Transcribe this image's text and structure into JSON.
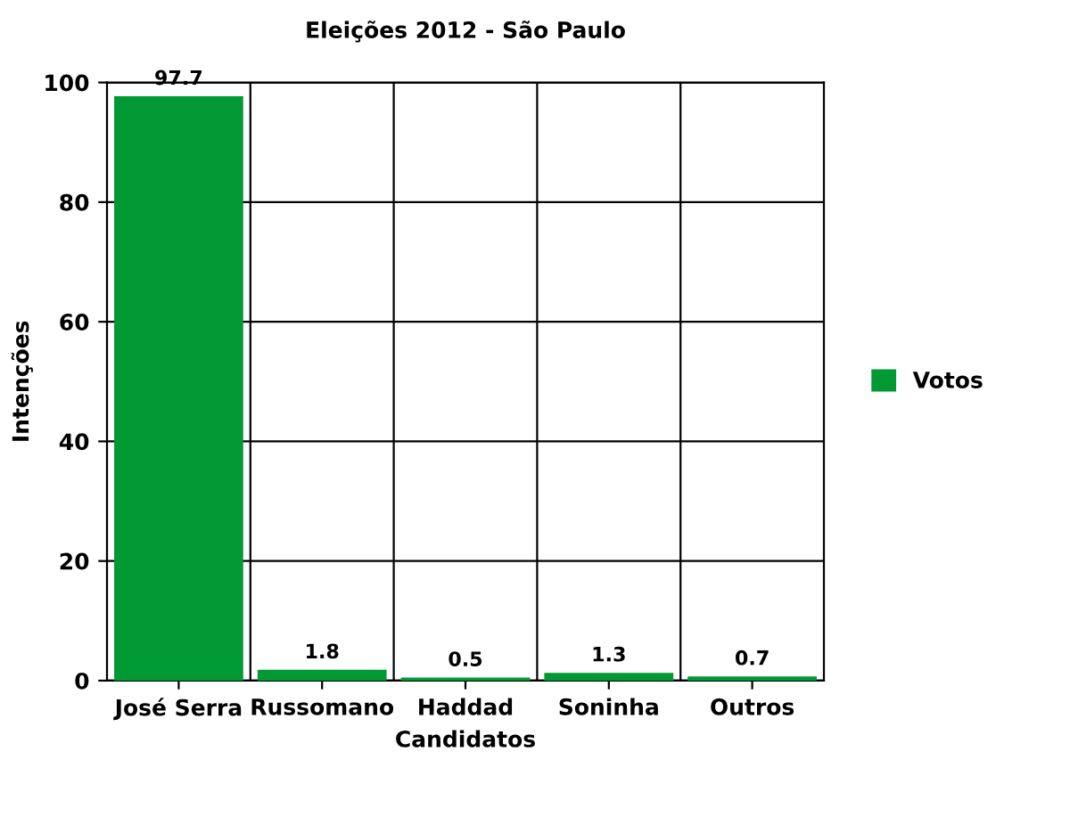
{
  "chart_data": {
    "type": "bar",
    "title": "Eleições 2012 - São Paulo",
    "xlabel": "Candidatos",
    "ylabel": "Intenções",
    "categories": [
      "José Serra",
      "Russomano",
      "Haddad",
      "Soninha",
      "Outros"
    ],
    "series": [
      {
        "name": "Votos",
        "color": "#009933",
        "values": [
          97.7,
          1.8,
          0.5,
          1.3,
          0.7
        ]
      }
    ],
    "ylim": [
      0,
      100
    ],
    "yticks": [
      0,
      20,
      40,
      60,
      80,
      100
    ],
    "grid": true,
    "legend": "right",
    "data_labels": true
  }
}
